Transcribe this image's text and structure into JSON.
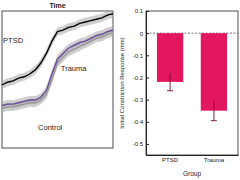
{
  "chart_data": [
    {
      "type": "line",
      "title": "Time",
      "tick_labels": false,
      "x": [
        0,
        1,
        2,
        3,
        4,
        5,
        6,
        7,
        8,
        9,
        10,
        11,
        12,
        13,
        14,
        15,
        16,
        17,
        18,
        19,
        20
      ],
      "xlim": [
        0,
        20
      ],
      "ylim": [
        0,
        1
      ],
      "series": [
        {
          "name": "PTSD",
          "color": "#000000",
          "values": [
            0.46,
            0.48,
            0.49,
            0.51,
            0.52,
            0.54,
            0.57,
            0.62,
            0.69,
            0.78,
            0.85,
            0.86,
            0.88,
            0.89,
            0.91,
            0.92,
            0.93,
            0.94,
            0.95,
            0.97,
            0.98
          ],
          "error": [
            0.03,
            0.03,
            0.03,
            0.03,
            0.03,
            0.03,
            0.03,
            0.03,
            0.03,
            0.03,
            0.03,
            0.03,
            0.03,
            0.03,
            0.03,
            0.03,
            0.03,
            0.03,
            0.03,
            0.03,
            0.03
          ]
        },
        {
          "name": "Control",
          "color": "#9a9a9a",
          "values": [
            0.29,
            0.3,
            0.3,
            0.31,
            0.32,
            0.33,
            0.33,
            0.35,
            0.39,
            0.5,
            0.62,
            0.66,
            0.7,
            0.72,
            0.74,
            0.76,
            0.78,
            0.8,
            0.81,
            0.83,
            0.84
          ],
          "error": [
            0.03,
            0.03,
            0.03,
            0.03,
            0.03,
            0.03,
            0.03,
            0.03,
            0.03,
            0.03,
            0.03,
            0.03,
            0.03,
            0.03,
            0.03,
            0.03,
            0.03,
            0.03,
            0.03,
            0.03,
            0.03
          ]
        },
        {
          "name": "Trauma",
          "color": "#6a4c9c",
          "values": [
            0.31,
            0.32,
            0.32,
            0.33,
            0.34,
            0.35,
            0.35,
            0.37,
            0.42,
            0.54,
            0.65,
            0.69,
            0.73,
            0.75,
            0.77,
            0.78,
            0.8,
            0.82,
            0.83,
            0.85,
            0.86
          ],
          "error": [
            0.03,
            0.03,
            0.03,
            0.03,
            0.03,
            0.03,
            0.03,
            0.03,
            0.03,
            0.03,
            0.03,
            0.03,
            0.03,
            0.03,
            0.03,
            0.03,
            0.03,
            0.03,
            0.03,
            0.03,
            0.03
          ]
        }
      ],
      "annotations": [
        {
          "text": "PTSD",
          "x": 0.2,
          "y": 0.77
        },
        {
          "text": "Trauma",
          "x": 10.6,
          "y": 0.56
        },
        {
          "text": "Control",
          "x": 6.5,
          "y": 0.13
        }
      ]
    },
    {
      "type": "bar",
      "x_label": "Group",
      "y_label": "Initial Constriction Response (mm)",
      "categories": [
        "PTSD",
        "Trauma"
      ],
      "values": [
        -0.22,
        -0.35
      ],
      "errors": [
        0.04,
        0.045
      ],
      "color": "#e3175f",
      "ylim": [
        -0.55,
        0.1
      ],
      "yticks": [
        0.1,
        0,
        -0.1,
        -0.2,
        -0.3,
        -0.4,
        -0.5
      ]
    }
  ]
}
